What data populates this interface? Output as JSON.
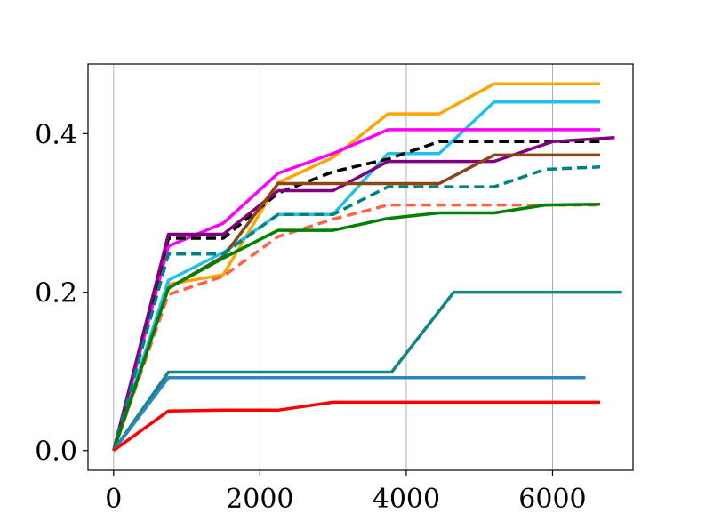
{
  "chart_data": {
    "type": "line",
    "title": "",
    "xlabel": "",
    "ylabel": "",
    "xlim": [
      -350,
      7100
    ],
    "ylim": [
      -0.025,
      0.488
    ],
    "xticks": [
      0,
      2000,
      4000,
      6000
    ],
    "xtick_labels": [
      "0",
      "2000",
      "4000",
      "6000"
    ],
    "yticks": [
      0.0,
      0.2,
      0.4
    ],
    "ytick_labels": [
      "0.0",
      "0.2",
      "0.4"
    ],
    "grid": "vertical",
    "legend": "none",
    "series": [
      {
        "color": "#FFA500",
        "dash": "solid",
        "x": [
          0,
          750,
          1500,
          2250,
          3000,
          3750,
          4450,
          5200,
          5900,
          6650
        ],
        "y": [
          0,
          0.21,
          0.222,
          0.338,
          0.37,
          0.425,
          0.425,
          0.463,
          0.463,
          0.463
        ]
      },
      {
        "color": "#1EC0F0",
        "dash": "solid",
        "x": [
          0,
          750,
          1500,
          2250,
          3000,
          3750,
          4450,
          5200,
          5900,
          6650
        ],
        "y": [
          0,
          0.215,
          0.25,
          0.298,
          0.298,
          0.375,
          0.375,
          0.44,
          0.44,
          0.44
        ]
      },
      {
        "color": "#FF00FF",
        "dash": "solid",
        "x": [
          0,
          750,
          1500,
          2250,
          3000,
          3750,
          4450,
          5200,
          5900,
          6650
        ],
        "y": [
          0,
          0.258,
          0.287,
          0.35,
          0.375,
          0.405,
          0.405,
          0.405,
          0.405,
          0.405
        ]
      },
      {
        "color": "#000000",
        "dash": "dashed",
        "x": [
          0,
          750,
          1500,
          2250,
          3000,
          3750,
          4450,
          5200,
          5900,
          6650
        ],
        "y": [
          0,
          0.268,
          0.268,
          0.325,
          0.352,
          0.368,
          0.39,
          0.39,
          0.39,
          0.39
        ]
      },
      {
        "color": "#800080",
        "dash": "solid",
        "x": [
          0,
          750,
          1500,
          2250,
          3000,
          3750,
          4450,
          5200,
          6000,
          6850
        ],
        "y": [
          0,
          0.273,
          0.273,
          0.328,
          0.328,
          0.365,
          0.365,
          0.365,
          0.39,
          0.395
        ]
      },
      {
        "color": "#8B4513",
        "dash": "solid",
        "x": [
          0,
          750,
          1500,
          2250,
          3000,
          3750,
          4450,
          5200,
          5900,
          6650
        ],
        "y": [
          0,
          0.205,
          0.245,
          0.337,
          0.337,
          0.337,
          0.337,
          0.373,
          0.373,
          0.373
        ]
      },
      {
        "color": "#008080",
        "dash": "dashed",
        "x": [
          0,
          750,
          1500,
          2250,
          3000,
          3750,
          4450,
          5200,
          5900,
          6650
        ],
        "y": [
          0,
          0.248,
          0.248,
          0.298,
          0.298,
          0.333,
          0.333,
          0.333,
          0.355,
          0.358
        ]
      },
      {
        "color": "#FF6347",
        "dash": "dashed",
        "x": [
          0,
          750,
          1500,
          2250,
          3000,
          3750,
          4450,
          5200,
          5900,
          6650
        ],
        "y": [
          0,
          0.197,
          0.22,
          0.27,
          0.292,
          0.31,
          0.31,
          0.31,
          0.31,
          0.31
        ]
      },
      {
        "color": "#008000",
        "dash": "solid",
        "x": [
          0,
          750,
          1500,
          2250,
          3000,
          3750,
          4450,
          5200,
          5900,
          6650
        ],
        "y": [
          0,
          0.205,
          0.243,
          0.278,
          0.278,
          0.293,
          0.3,
          0.3,
          0.31,
          0.311
        ]
      },
      {
        "color": "#138484",
        "dash": "solid",
        "x": [
          0,
          750,
          1500,
          2250,
          3000,
          3800,
          4650,
          5400,
          6200,
          6950
        ],
        "y": [
          0,
          0.099,
          0.099,
          0.099,
          0.099,
          0.099,
          0.2,
          0.2,
          0.2,
          0.2
        ]
      },
      {
        "color": "#2E86C1",
        "dash": "solid",
        "x": [
          0,
          750,
          1500,
          2250,
          3000,
          3750,
          4450,
          5200,
          5900,
          6450
        ],
        "y": [
          0,
          0.092,
          0.092,
          0.092,
          0.092,
          0.092,
          0.092,
          0.092,
          0.092,
          0.092
        ]
      },
      {
        "color": "#FF0000",
        "dash": "solid",
        "x": [
          0,
          750,
          1500,
          2250,
          3000,
          3750,
          4450,
          5200,
          5900,
          6650
        ],
        "y": [
          0,
          0.05,
          0.051,
          0.051,
          0.061,
          0.061,
          0.061,
          0.061,
          0.061,
          0.061
        ]
      }
    ]
  }
}
